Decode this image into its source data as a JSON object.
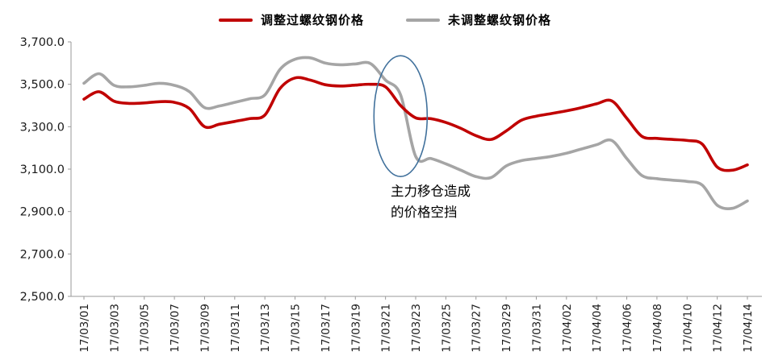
{
  "legend_position": "top-center",
  "chart_data": {
    "type": "line",
    "x_labels": [
      "17/03/01",
      "17/03/03",
      "17/03/05",
      "17/03/07",
      "17/03/09",
      "17/03/11",
      "17/03/13",
      "17/03/15",
      "17/03/17",
      "17/03/19",
      "17/03/21",
      "17/03/23",
      "17/03/25",
      "17/03/27",
      "17/03/29",
      "17/03/31",
      "17/04/02",
      "17/04/04",
      "17/04/06",
      "17/04/08",
      "17/04/10",
      "17/04/12",
      "17/04/14"
    ],
    "label_step": 2,
    "series": [
      {
        "name": "调整过螺纹钢价格",
        "color": "#c00000",
        "values": [
          3430,
          3465,
          3420,
          3410,
          3412,
          3418,
          3415,
          3385,
          3300,
          3312,
          3325,
          3338,
          3355,
          3480,
          3530,
          3520,
          3498,
          3492,
          3496,
          3500,
          3488,
          3400,
          3342,
          3338,
          3320,
          3292,
          3258,
          3240,
          3280,
          3330,
          3350,
          3362,
          3375,
          3390,
          3408,
          3422,
          3340,
          3255,
          3245,
          3240,
          3235,
          3218,
          3110,
          3095,
          3120
        ]
      },
      {
        "name": "未调整螺纹钢价格",
        "color": "#a5a5a5",
        "values": [
          3505,
          3550,
          3495,
          3488,
          3495,
          3505,
          3495,
          3465,
          3390,
          3398,
          3415,
          3432,
          3450,
          3570,
          3618,
          3625,
          3600,
          3592,
          3596,
          3598,
          3520,
          3450,
          3160,
          3150,
          3125,
          3095,
          3065,
          3060,
          3115,
          3140,
          3150,
          3160,
          3175,
          3195,
          3215,
          3235,
          3150,
          3070,
          3055,
          3048,
          3042,
          3025,
          2930,
          2915,
          2950
        ]
      }
    ],
    "ylim": [
      2500,
      3700
    ],
    "ytick_step": 200,
    "ytick_labels": [
      "2,500.0",
      "2,700.0",
      "2,900.0",
      "3,100.0",
      "3,300.0",
      "3,500.0",
      "3,700.0"
    ],
    "grid": false,
    "axis_color": "#9a9a9a",
    "tick_label_color": "#1a1a1a",
    "annotation": {
      "text_lines": [
        "主力移仓造成",
        "的价格空挡"
      ],
      "shape": "ellipse",
      "color": "#41719c",
      "highlight_index": 21,
      "highlight_center_value": 3350
    }
  }
}
